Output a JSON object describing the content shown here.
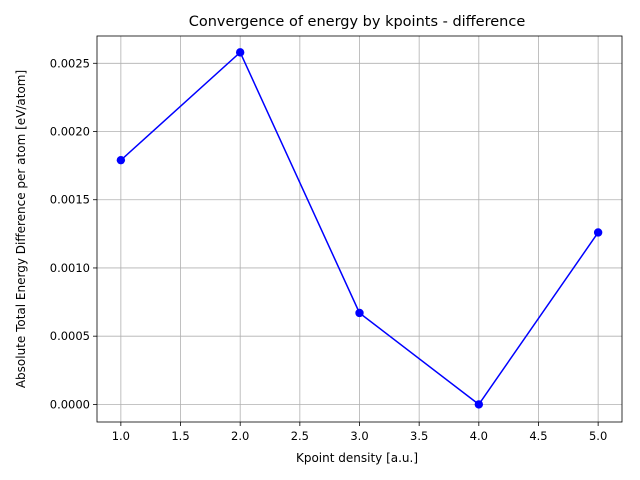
{
  "chart_data": {
    "type": "line",
    "title": "Convergence of energy by kpoints - difference",
    "xlabel": "Kpoint density [a.u.]",
    "ylabel": "Absolute Total Energy Difference per atom [eV/atom]",
    "x": [
      1.0,
      2.0,
      3.0,
      4.0,
      5.0
    ],
    "series": [
      {
        "values": [
          0.00179,
          0.00258,
          0.00067,
          0.0,
          0.00126
        ]
      }
    ],
    "xlim": [
      0.8,
      5.2
    ],
    "ylim": [
      -0.000129,
      0.0027
    ],
    "xticks": [
      1.0,
      1.5,
      2.0,
      2.5,
      3.0,
      3.5,
      4.0,
      4.5,
      5.0
    ],
    "xtick_labels": [
      "1.0",
      "1.5",
      "2.0",
      "2.5",
      "3.0",
      "3.5",
      "4.0",
      "4.5",
      "5.0"
    ],
    "yticks": [
      0.0,
      0.0005,
      0.001,
      0.0015,
      0.002,
      0.0025
    ],
    "ytick_labels": [
      "0.0000",
      "0.0005",
      "0.0010",
      "0.0015",
      "0.0020",
      "0.0025"
    ],
    "grid": true,
    "line_color": "#0000ff",
    "marker": "circle"
  }
}
